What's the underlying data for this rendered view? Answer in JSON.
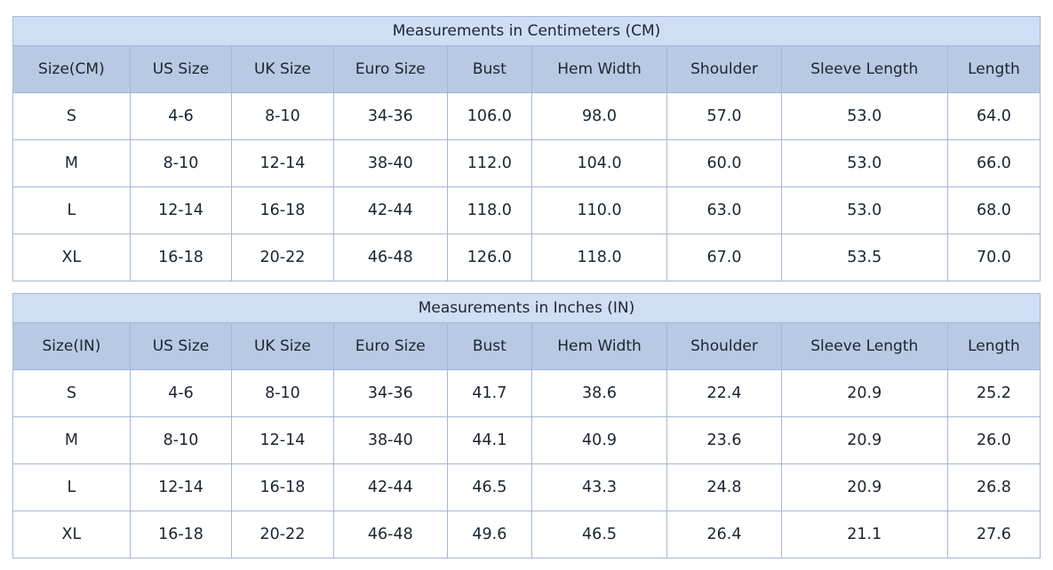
{
  "colors": {
    "title_band_bg": "#cfdef5",
    "header_row_bg": "#b8c9e3",
    "grid_border": "#a2b8d6",
    "text": "#1b2532",
    "row_bg": "#ffffff"
  },
  "chart_data": [
    {
      "type": "table",
      "title": "Measurements in Centimeters (CM)",
      "columns": [
        "Size(CM)",
        "US Size",
        "UK Size",
        "Euro Size",
        "Bust",
        "Hem Width",
        "Shoulder",
        "Sleeve Length",
        "Length"
      ],
      "rows": [
        [
          "S",
          "4-6",
          "8-10",
          "34-36",
          "106.0",
          "98.0",
          "57.0",
          "53.0",
          "64.0"
        ],
        [
          "M",
          "8-10",
          "12-14",
          "38-40",
          "112.0",
          "104.0",
          "60.0",
          "53.0",
          "66.0"
        ],
        [
          "L",
          "12-14",
          "16-18",
          "42-44",
          "118.0",
          "110.0",
          "63.0",
          "53.0",
          "68.0"
        ],
        [
          "XL",
          "16-18",
          "20-22",
          "46-48",
          "126.0",
          "118.0",
          "67.0",
          "53.5",
          "70.0"
        ]
      ]
    },
    {
      "type": "table",
      "title": "Measurements in Inches (IN)",
      "columns": [
        "Size(IN)",
        "US Size",
        "UK Size",
        "Euro Size",
        "Bust",
        "Hem Width",
        "Shoulder",
        "Sleeve Length",
        "Length"
      ],
      "rows": [
        [
          "S",
          "4-6",
          "8-10",
          "34-36",
          "41.7",
          "38.6",
          "22.4",
          "20.9",
          "25.2"
        ],
        [
          "M",
          "8-10",
          "12-14",
          "38-40",
          "44.1",
          "40.9",
          "23.6",
          "20.9",
          "26.0"
        ],
        [
          "L",
          "12-14",
          "16-18",
          "42-44",
          "46.5",
          "43.3",
          "24.8",
          "20.9",
          "26.8"
        ],
        [
          "XL",
          "16-18",
          "20-22",
          "46-48",
          "49.6",
          "46.5",
          "26.4",
          "21.1",
          "27.6"
        ]
      ]
    }
  ]
}
